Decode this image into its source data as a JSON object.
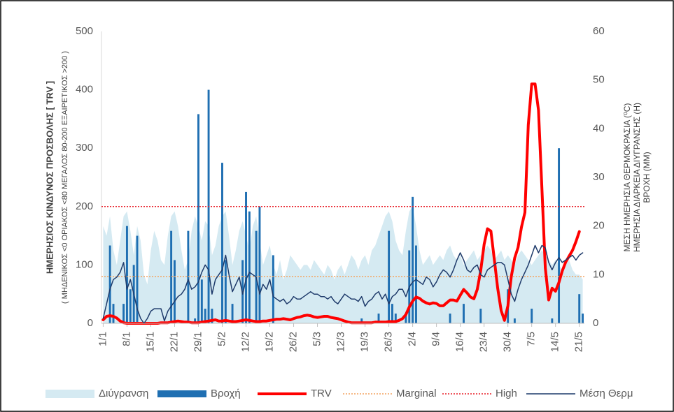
{
  "chart_data": {
    "type": "combo",
    "y_label": "ΗΜΕΡΗΣΙΟΣ ΚΙΝΔΥΝΟΣ  ΠΡΟΣΒΟΛΗΣ  [ TRV ]",
    "y_sublabel": "( ΜΗΔΕΝΙΚΟΣ <0 ΟΡΙΑΚΟΣ <80   ΜΕΓΑΛΟΣ 80-200  ΕΞΑΙΡΕΤΙΚΟΣ >200 )",
    "y2_label": [
      "ΜΕΣΗ ΗΜΕΡΗΣΙΑ  ΘΕΡΜΟΚΡΑΣΙΑ (⁰C)",
      "ΗΜΕΡΗΣΙΑ ΔΙΑΡΚΕΙΑ ΔΙΥΓΡΑΝΣΗΣ (H)",
      "ΒΡΟΧΗ (ΜΜ)"
    ],
    "ylim": [
      0,
      500
    ],
    "yticks": [
      0,
      100,
      200,
      300,
      400,
      500
    ],
    "y2lim": [
      0,
      60
    ],
    "y2ticks": [
      0,
      10,
      20,
      30,
      40,
      50,
      60
    ],
    "categories": [
      "1/1",
      null,
      null,
      null,
      null,
      null,
      null,
      "8/1",
      null,
      null,
      null,
      null,
      null,
      null,
      "15/1",
      null,
      null,
      null,
      null,
      null,
      null,
      "22/1",
      null,
      null,
      null,
      null,
      null,
      null,
      "29/1",
      null,
      null,
      null,
      null,
      null,
      null,
      "5/2",
      null,
      null,
      null,
      null,
      null,
      null,
      "12/2",
      null,
      null,
      null,
      null,
      null,
      null,
      "19/2",
      null,
      null,
      null,
      null,
      null,
      null,
      "26/2",
      null,
      null,
      null,
      null,
      null,
      null,
      "5/3",
      null,
      null,
      null,
      null,
      null,
      null,
      "12/3",
      null,
      null,
      null,
      null,
      null,
      null,
      "19/3",
      null,
      null,
      null,
      null,
      null,
      null,
      "26/3",
      null,
      null,
      null,
      null,
      null,
      null,
      "2/4",
      null,
      null,
      null,
      null,
      null,
      null,
      "9/4",
      null,
      null,
      null,
      null,
      null,
      null,
      "16/4",
      null,
      null,
      null,
      null,
      null,
      null,
      "23/4",
      null,
      null,
      null,
      null,
      null,
      null,
      "30/4",
      null,
      null,
      null,
      null,
      null,
      null,
      "7/5",
      null,
      null,
      null,
      null,
      null,
      null,
      "14/5",
      null,
      null,
      null,
      null,
      null,
      null,
      "21/5",
      null
    ],
    "series": [
      {
        "name": "Διύγρανση",
        "type": "area",
        "axis": "y2",
        "color": "#d5eaf2",
        "values": [
          20,
          18,
          22,
          15,
          12,
          17,
          22,
          23,
          19,
          14,
          20,
          17,
          10,
          8,
          15,
          19,
          17,
          13,
          12,
          18,
          22,
          23,
          20,
          15,
          11,
          13,
          19,
          22,
          20,
          17,
          21,
          20,
          14,
          16,
          20,
          22,
          23,
          18,
          12,
          15,
          19,
          21,
          18,
          15,
          20,
          22,
          17,
          12,
          14,
          16,
          12,
          10,
          13,
          9,
          11,
          14,
          13,
          12,
          11,
          12,
          12,
          11,
          13,
          12,
          11,
          10,
          12,
          11,
          9,
          11,
          12,
          10,
          12,
          14,
          13,
          11,
          13,
          14,
          12,
          15,
          16,
          18,
          20,
          22,
          23,
          21,
          17,
          15,
          14,
          19,
          23,
          24,
          20,
          15,
          12,
          13,
          14,
          12,
          13,
          14,
          13,
          15,
          16,
          14,
          13,
          14,
          12,
          13,
          14,
          15,
          13,
          14,
          15,
          16,
          15,
          13,
          14,
          15,
          13,
          14,
          13,
          12,
          14,
          15,
          14,
          13,
          12,
          13,
          14,
          15,
          14,
          13,
          12,
          13,
          12,
          11,
          12,
          13,
          11,
          10,
          10,
          9
        ]
      },
      {
        "name": "Βροχή",
        "type": "bar",
        "axis": "y2",
        "color": "#1f6fb2",
        "values": [
          0,
          0,
          16,
          4,
          0,
          0,
          4,
          20,
          7,
          12,
          18,
          0,
          0,
          0,
          0,
          0,
          0,
          0,
          0,
          0,
          19,
          13,
          0,
          0,
          0,
          19,
          0,
          1,
          43,
          9,
          3,
          48,
          3,
          0,
          0,
          33,
          13,
          0,
          4,
          0,
          0,
          13,
          27,
          23,
          0,
          19,
          24,
          0,
          0,
          0,
          14,
          0,
          0,
          0,
          0,
          0,
          0,
          0,
          0,
          0,
          0,
          0,
          0,
          0,
          0,
          0,
          0,
          0,
          0,
          0,
          0,
          0,
          0,
          0,
          0,
          0,
          1,
          0,
          0,
          0,
          0,
          2,
          0,
          0,
          19,
          4,
          2,
          0,
          0,
          2,
          15,
          26,
          16,
          0,
          0,
          0,
          0,
          0,
          0,
          0,
          0,
          0,
          2,
          0,
          0,
          0,
          4,
          0,
          0,
          0,
          0,
          3,
          0,
          0,
          0,
          0,
          0,
          0,
          0,
          7,
          0,
          1,
          0,
          0,
          0,
          0,
          3,
          0,
          0,
          0,
          0,
          0,
          1,
          0,
          36,
          0,
          0,
          0,
          0,
          0,
          6,
          2
        ]
      },
      {
        "name": "TRV",
        "type": "line",
        "axis": "y",
        "color": "#ff0000",
        "width": 4,
        "values": [
          6,
          12,
          13,
          12,
          9,
          4,
          1,
          0,
          0,
          0,
          0,
          0,
          0,
          0,
          0,
          0,
          0,
          1,
          1,
          1,
          2,
          3,
          4,
          3,
          2,
          2,
          1,
          1,
          1,
          2,
          3,
          4,
          5,
          6,
          4,
          4,
          5,
          4,
          3,
          3,
          4,
          5,
          6,
          5,
          4,
          3,
          3,
          4,
          4,
          5,
          6,
          7,
          7,
          8,
          7,
          6,
          8,
          10,
          11,
          13,
          14,
          13,
          11,
          10,
          11,
          12,
          12,
          10,
          9,
          8,
          6,
          4,
          2,
          1,
          1,
          1,
          1,
          1,
          1,
          1,
          2,
          2,
          2,
          2,
          3,
          3,
          3,
          5,
          8,
          15,
          28,
          38,
          45,
          43,
          38,
          35,
          33,
          35,
          34,
          30,
          30,
          35,
          40,
          40,
          38,
          48,
          58,
          52,
          45,
          42,
          58,
          90,
          135,
          162,
          158,
          110,
          60,
          22,
          5,
          30,
          80,
          112,
          130,
          165,
          190,
          340,
          410,
          410,
          365,
          230,
          95,
          40,
          60,
          55,
          70,
          90,
          105,
          115,
          125,
          140,
          157,
          null
        ]
      },
      {
        "name": "Marginal",
        "type": "hline",
        "axis": "y",
        "color": "#f4a460",
        "value": 80
      },
      {
        "name": "High",
        "type": "hline",
        "axis": "y",
        "color": "#e8202a",
        "value": 200
      },
      {
        "name": "Μέση Θερμ",
        "type": "line",
        "axis": "y2",
        "color": "#1f3b6b",
        "width": 1.5,
        "values": [
          1,
          4,
          7,
          9,
          9.5,
          10.5,
          12.5,
          7,
          9,
          6,
          3,
          1,
          0,
          1,
          2.5,
          3,
          3,
          3,
          0.5,
          2.5,
          3.5,
          4.5,
          5.5,
          6,
          7,
          9,
          7,
          7.5,
          8.5,
          10.5,
          12,
          11,
          6,
          9,
          10,
          11,
          14,
          10,
          6.5,
          8,
          9.5,
          6,
          9,
          10.5,
          10,
          9.5,
          6,
          8,
          7,
          9,
          5.5,
          5,
          4.5,
          5,
          4,
          4.5,
          5.5,
          5,
          5,
          5.5,
          6,
          6.5,
          6,
          6,
          5.5,
          5.5,
          5,
          5.5,
          4.5,
          4,
          5,
          6,
          5.5,
          5,
          5,
          4.5,
          5.5,
          3.5,
          4.5,
          5,
          6,
          6.5,
          5,
          6,
          4,
          5.5,
          6,
          7,
          7,
          5.5,
          7.5,
          8.5,
          9,
          8.5,
          8,
          9.5,
          9,
          7.5,
          8.5,
          10,
          11,
          10.5,
          9.5,
          11,
          13,
          14.5,
          13,
          11,
          10.5,
          11.5,
          12,
          10,
          9.5,
          11,
          11.5,
          12,
          12.5,
          12.5,
          12,
          9,
          6,
          4.5,
          7,
          9,
          10.5,
          12,
          14,
          16,
          14.5,
          16,
          15.5,
          12.5,
          11,
          12.5,
          13.5,
          12.5,
          13,
          13.5,
          14,
          13,
          14,
          14.5
        ]
      }
    ]
  }
}
